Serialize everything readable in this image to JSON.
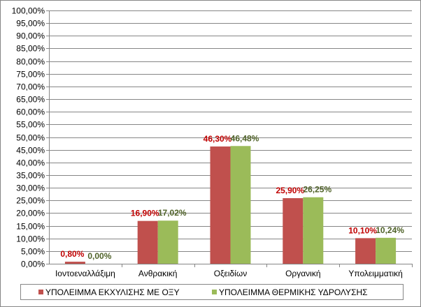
{
  "chart_data": {
    "type": "bar",
    "categories": [
      "Ιοντοεναλλάξιμη",
      "Ανθρακική",
      "Οξειδίων",
      "Οργανική",
      "Υπολειμματική"
    ],
    "series": [
      {
        "name": "ΥΠΟΛΕΙΜΜΑ ΕΚΧΥΛΙΣΗΣ ΜΕ ΟΞΥ",
        "values": [
          0.8,
          16.9,
          46.3,
          25.9,
          10.1
        ],
        "labels": [
          "0,80%",
          "16,90%",
          "46,30%",
          "25,90%",
          "10,10%"
        ],
        "color": "#c0504d",
        "label_color": "#c00000"
      },
      {
        "name": "ΥΠΟΛΕΙΜΜΑ ΘΕΡΜΙΚΗΣ ΥΔΡΟΛΥΣΗΣ",
        "values": [
          0.0,
          17.02,
          46.48,
          26.25,
          10.24
        ],
        "labels": [
          "0,00%",
          "17,02%",
          "46,48%",
          "26,25%",
          "10,24%"
        ],
        "color": "#9bbb59",
        "label_color": "#4f6228"
      }
    ],
    "ylim": [
      0,
      100
    ],
    "ystep": 5,
    "ytick_labels": [
      "0,00%",
      "5,00%",
      "10,00%",
      "15,00%",
      "20,00%",
      "25,00%",
      "30,00%",
      "35,00%",
      "40,00%",
      "45,00%",
      "50,00%",
      "55,00%",
      "60,00%",
      "65,00%",
      "70,00%",
      "75,00%",
      "80,00%",
      "85,00%",
      "90,00%",
      "95,00%",
      "100,00%"
    ],
    "grid": true,
    "legend_position": "bottom"
  }
}
